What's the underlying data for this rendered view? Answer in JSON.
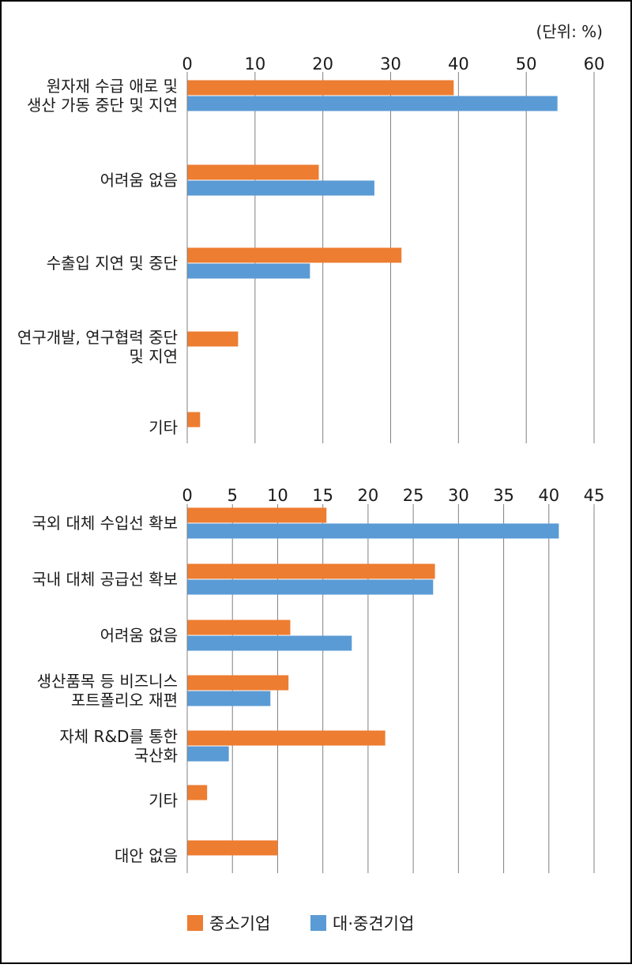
{
  "unit_label": "(단위: %)",
  "colors": {
    "sme": "#ED7D31",
    "large": "#5B9BD5",
    "grid": "#808080",
    "border": "#000000"
  },
  "legend": [
    {
      "label": "중소기업",
      "color": "#ED7D31"
    },
    {
      "label": "대·중견기업",
      "color": "#5B9BD5"
    }
  ],
  "chart_data": [
    {
      "type": "bar",
      "orientation": "horizontal",
      "xlim": [
        0,
        60
      ],
      "ticks": [
        0,
        10,
        20,
        30,
        40,
        50,
        60
      ],
      "categories": [
        [
          "원자재 수급 애로 및",
          "생산 가동 중단 및 지연"
        ],
        [
          "어려움 없음"
        ],
        [
          "수출입 지연 및 중단"
        ],
        [
          "연구개발, 연구협력 중단",
          "및 지연"
        ],
        [
          "기타"
        ]
      ],
      "series": [
        {
          "name": "중소기업",
          "values": [
            39.3,
            19.4,
            31.6,
            7.5,
            1.9
          ]
        },
        {
          "name": "대·중견기업",
          "values": [
            54.6,
            27.6,
            18.1,
            0,
            0
          ]
        }
      ],
      "grid": true,
      "legend_position": "bottom"
    },
    {
      "type": "bar",
      "orientation": "horizontal",
      "xlim": [
        0,
        45
      ],
      "ticks": [
        0,
        5,
        10,
        15,
        20,
        25,
        30,
        35,
        40,
        45
      ],
      "categories": [
        [
          "국외 대체 수입선 확보"
        ],
        [
          "국내 대체 공급선 확보"
        ],
        [
          "어려움 없음"
        ],
        [
          "생산품목 등 비즈니스",
          "포트폴리오 재편"
        ],
        [
          "자체 R&D를 통한",
          "국산화"
        ],
        [
          "기타"
        ],
        [
          "대안 없음"
        ]
      ],
      "series": [
        {
          "name": "중소기업",
          "values": [
            15.4,
            27.4,
            11.4,
            11.2,
            21.9,
            2.2,
            10.0
          ]
        },
        {
          "name": "대·중견기업",
          "values": [
            41.1,
            27.2,
            18.2,
            9.2,
            4.6,
            0,
            0
          ]
        }
      ],
      "grid": true,
      "legend_position": "bottom"
    }
  ]
}
